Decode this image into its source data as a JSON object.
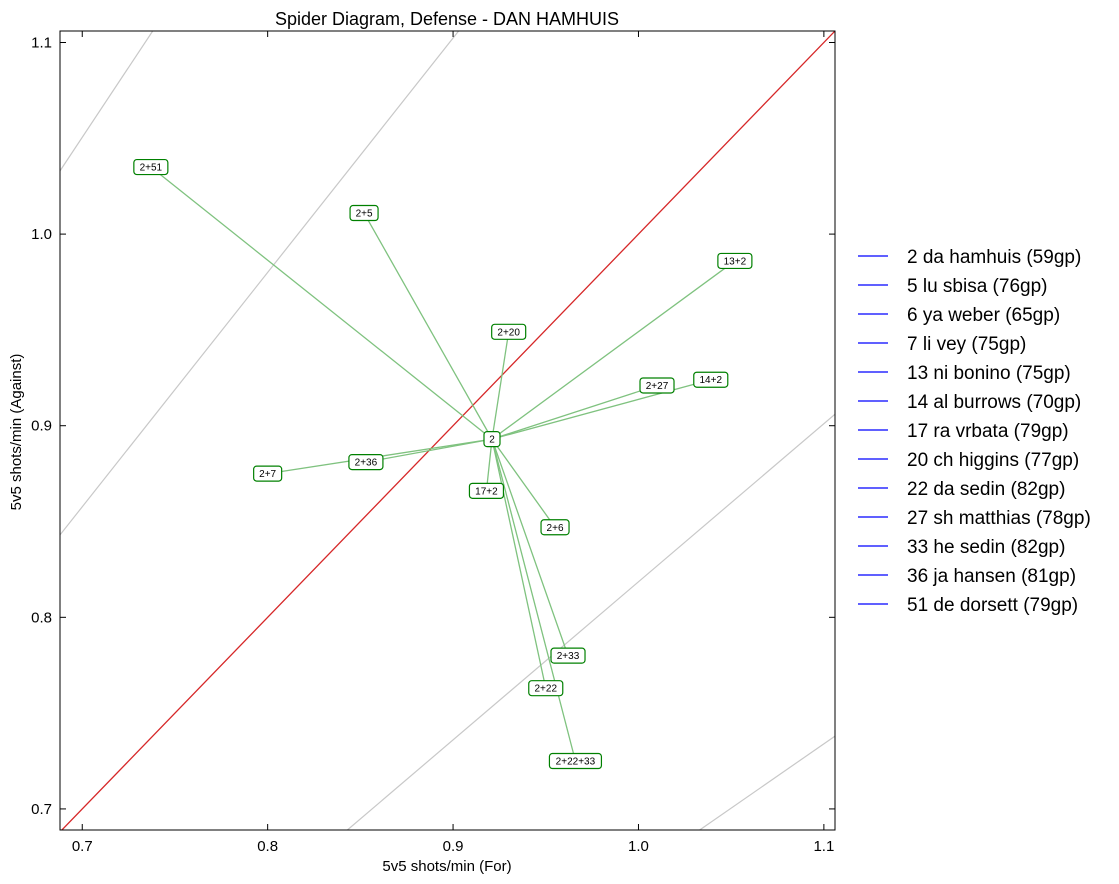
{
  "chart_data": {
    "type": "scatter",
    "title": "Spider Diagram, Defense - DAN HAMHUIS",
    "xlabel": "5v5 shots/min (For)",
    "ylabel": "5v5 shots/min (Against)",
    "xlim": [
      0.688,
      1.106
    ],
    "ylim": [
      0.689,
      1.106
    ],
    "xticks": [
      "0.7",
      "0.8",
      "0.9",
      "1.0",
      "1.1"
    ],
    "yticks": [
      "0.7",
      "0.8",
      "0.9",
      "1.0",
      "1.1"
    ],
    "grid": false,
    "legend_position": "right",
    "colors": {
      "diagonal": "#d62728",
      "spokes": "#7fc27f",
      "node_border": "#008000",
      "iso_lines": "#c8c8c8",
      "legend_line": "#0000ff"
    },
    "diagonal": {
      "from": [
        0.688,
        0.688
      ],
      "to": [
        1.106,
        1.106
      ]
    },
    "iso_lines": [
      {
        "from": [
          0.688,
          1.033
        ],
        "to": [
          0.738,
          1.106
        ]
      },
      {
        "from": [
          0.688,
          0.843
        ],
        "to": [
          0.903,
          1.106
        ]
      },
      {
        "from": [
          0.843,
          0.689
        ],
        "to": [
          1.106,
          0.906
        ]
      },
      {
        "from": [
          1.033,
          0.689
        ],
        "to": [
          1.106,
          0.738
        ]
      }
    ],
    "center": {
      "label": "2",
      "x": 0.921,
      "y": 0.893
    },
    "points": [
      {
        "label": "2+51",
        "x": 0.737,
        "y": 1.035
      },
      {
        "label": "2+5",
        "x": 0.852,
        "y": 1.011
      },
      {
        "label": "13+2",
        "x": 1.052,
        "y": 0.986
      },
      {
        "label": "2+20",
        "x": 0.93,
        "y": 0.949
      },
      {
        "label": "2+27",
        "x": 1.01,
        "y": 0.921
      },
      {
        "label": "14+2",
        "x": 1.039,
        "y": 0.924
      },
      {
        "label": "2+7",
        "x": 0.8,
        "y": 0.875
      },
      {
        "label": "2+36",
        "x": 0.853,
        "y": 0.881
      },
      {
        "label": "17+2",
        "x": 0.918,
        "y": 0.866
      },
      {
        "label": "2+6",
        "x": 0.955,
        "y": 0.847
      },
      {
        "label": "2+33",
        "x": 0.962,
        "y": 0.78
      },
      {
        "label": "2+22",
        "x": 0.95,
        "y": 0.763
      },
      {
        "label": "2+22+33",
        "x": 0.966,
        "y": 0.725
      }
    ],
    "legend": [
      "2 da hamhuis (59gp)",
      "5 lu sbisa (76gp)",
      "6 ya weber (65gp)",
      "7 li vey (75gp)",
      "13 ni bonino (75gp)",
      "14 al burrows (70gp)",
      "17 ra vrbata (79gp)",
      "20 ch higgins (77gp)",
      "22 da sedin (82gp)",
      "27 sh matthias (78gp)",
      "33 he sedin (82gp)",
      "36 ja hansen (81gp)",
      "51 de dorsett (79gp)"
    ]
  }
}
